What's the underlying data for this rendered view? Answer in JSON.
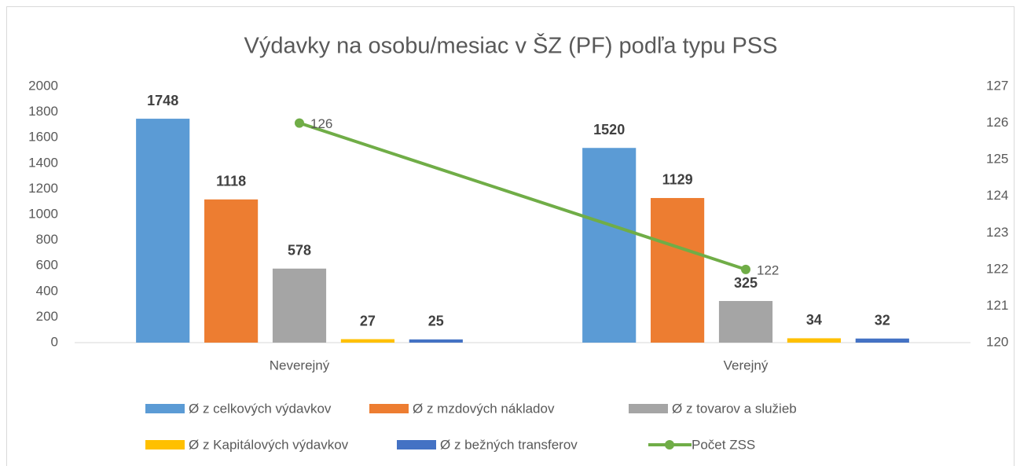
{
  "chart_data": {
    "type": "bar",
    "title": "Výdavky na osobu/mesiac v ŠZ (PF) podľa typu PSS",
    "categories": [
      "Neverejný",
      "Verejný"
    ],
    "series": [
      {
        "name": "Ø z celkových výdavkov",
        "color": "#5b9bd5",
        "values": [
          1748,
          1520
        ]
      },
      {
        "name": "Ø z mzdových nákladov",
        "color": "#ed7d31",
        "values": [
          1118,
          1129
        ]
      },
      {
        "name": "Ø z tovarov a služieb",
        "color": "#a5a5a5",
        "values": [
          578,
          325
        ]
      },
      {
        "name": "Ø z Kapitálových výdavkov",
        "color": "#ffc000",
        "values": [
          27,
          34
        ]
      },
      {
        "name": "Ø z bežných transferov",
        "color": "#4472c4",
        "values": [
          25,
          32
        ]
      },
      {
        "name": "Počet ZSS",
        "color": "#70ad47",
        "type": "line",
        "axis": "y2",
        "values": [
          126,
          122
        ]
      }
    ],
    "ylim": [
      0,
      2000
    ],
    "yticks": [
      0,
      200,
      400,
      600,
      800,
      1000,
      1200,
      1400,
      1600,
      1800,
      2000
    ],
    "y2lim": [
      120,
      127
    ],
    "y2ticks": [
      120,
      121,
      122,
      123,
      124,
      125,
      126,
      127
    ],
    "grid": false,
    "legend": "bottom"
  }
}
